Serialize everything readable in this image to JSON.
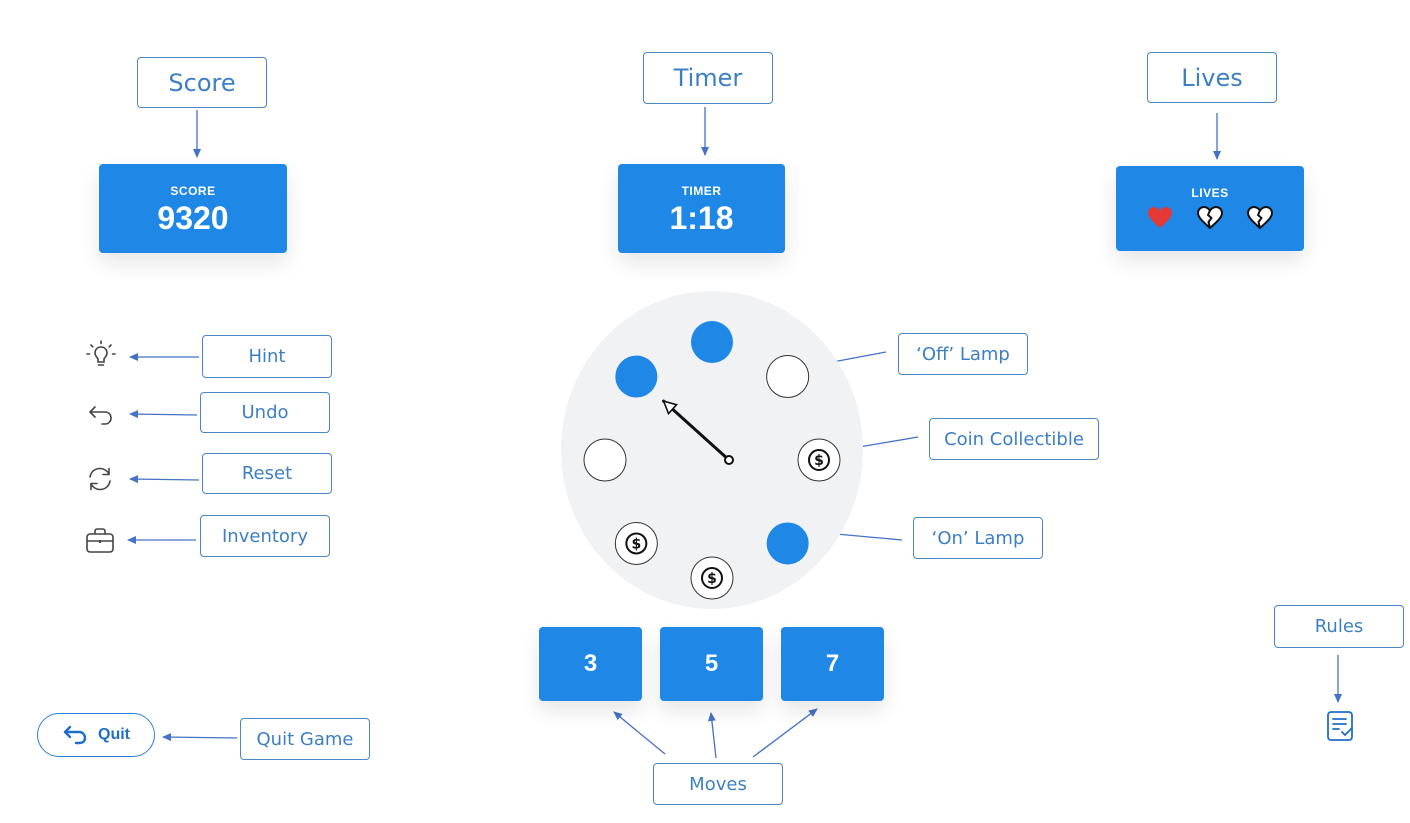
{
  "annotations": {
    "score": "Score",
    "timer": "Timer",
    "lives": "Lives",
    "hint": "Hint",
    "undo": "Undo",
    "reset": "Reset",
    "inventory": "Inventory",
    "off_lamp": "‘Off’ Lamp",
    "coin": "Coin Collectible",
    "on_lamp": "‘On’ Lamp",
    "moves": "Moves",
    "rules": "Rules",
    "quit_game": "Quit Game"
  },
  "score_panel": {
    "label": "SCORE",
    "value": "9320"
  },
  "timer_panel": {
    "label": "TIMER",
    "value": "1:18"
  },
  "lives_panel": {
    "label": "LIVES",
    "hearts": [
      {
        "state": "full",
        "icon": "heart-icon",
        "color": "#e53935"
      },
      {
        "state": "broken",
        "icon": "broken-heart-icon"
      },
      {
        "state": "broken",
        "icon": "broken-heart-icon"
      }
    ]
  },
  "wheel": {
    "slots": [
      {
        "type": "lamp-on"
      },
      {
        "type": "lamp-off"
      },
      {
        "type": "coin"
      },
      {
        "type": "lamp-on"
      },
      {
        "type": "coin"
      },
      {
        "type": "coin"
      },
      {
        "type": "lamp-off"
      },
      {
        "type": "lamp-on"
      }
    ],
    "pointer_slot": 7
  },
  "moves": [
    "3",
    "5",
    "7"
  ],
  "quit_button": {
    "label": "Quit",
    "icon": "undo-arrow-icon"
  },
  "tools": [
    {
      "name": "hint",
      "icon": "lightbulb-icon"
    },
    {
      "name": "undo",
      "icon": "undo-icon"
    },
    {
      "name": "reset",
      "icon": "refresh-icon"
    },
    {
      "name": "inventory",
      "icon": "briefcase-icon"
    }
  ],
  "rules_icon": "rules-clipboard-icon",
  "colors": {
    "accent": "#1f87e6",
    "wheel_bg": "#f1f2f4",
    "callout": "#3d7fc4"
  }
}
